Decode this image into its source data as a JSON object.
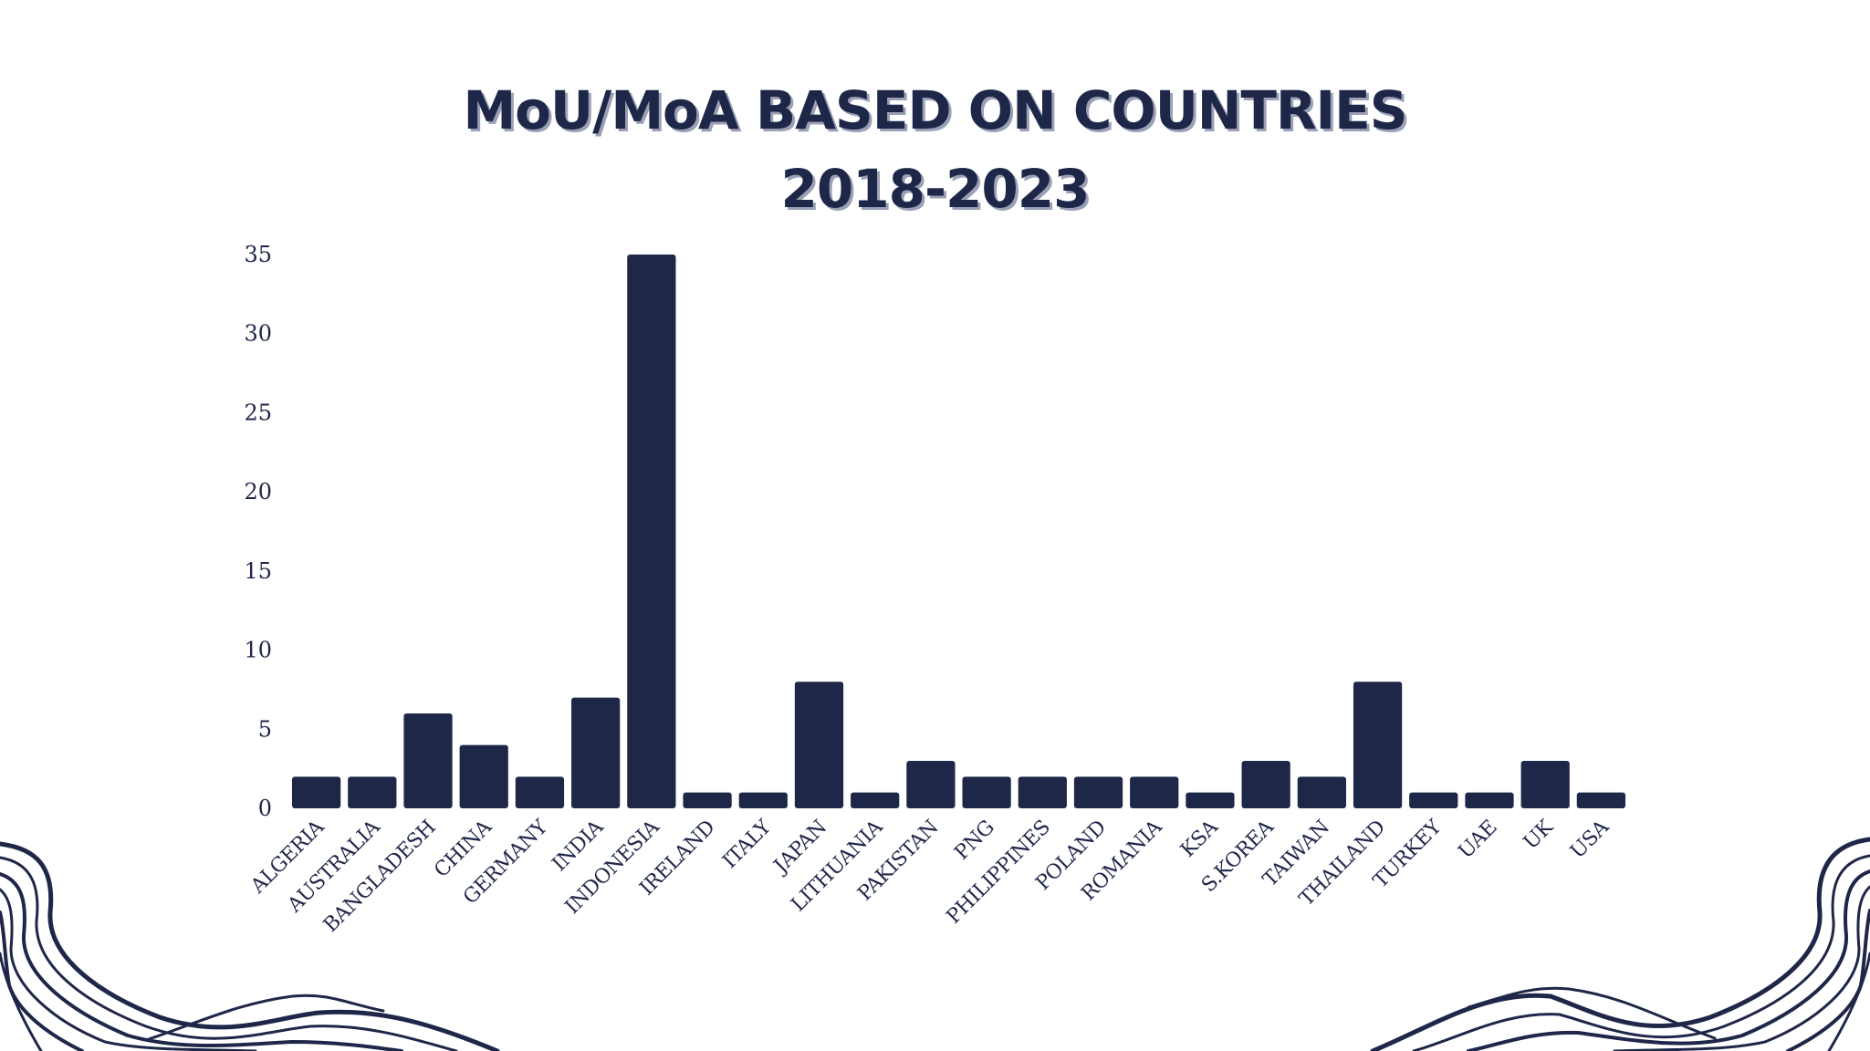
{
  "colors": {
    "navy": "#1f2749",
    "background": "#ffffff",
    "title_shadow": "#9aa0b6"
  },
  "title": {
    "line1": "MoU/MoA BASED ON COUNTRIES",
    "line2": "2018-2023"
  },
  "chart_data": {
    "type": "bar",
    "title": "MoU/MoA BASED ON COUNTRIES 2018-2023",
    "xlabel": "",
    "ylabel": "",
    "ylim": [
      0,
      35
    ],
    "yticks": [
      0,
      5,
      10,
      15,
      20,
      25,
      30,
      35
    ],
    "grid": false,
    "legend": "none",
    "categories": [
      "ALGERIA",
      "AUSTRALIA",
      "BANGLADESH",
      "CHINA",
      "GERMANY",
      "INDIA",
      "INDONESIA",
      "IRELAND",
      "ITALY",
      "JAPAN",
      "LITHUANIA",
      "PAKISTAN",
      "PNG",
      "PHILIPPINES",
      "POLAND",
      "ROMANIA",
      "KSA",
      "S.KOREA",
      "TAIWAN",
      "THAILAND",
      "TURKEY",
      "UAE",
      "UK",
      "USA"
    ],
    "values": [
      2,
      2,
      6,
      4,
      2,
      7,
      35,
      1,
      1,
      8,
      1,
      3,
      2,
      2,
      2,
      2,
      1,
      3,
      2,
      8,
      1,
      1,
      3,
      1
    ]
  }
}
